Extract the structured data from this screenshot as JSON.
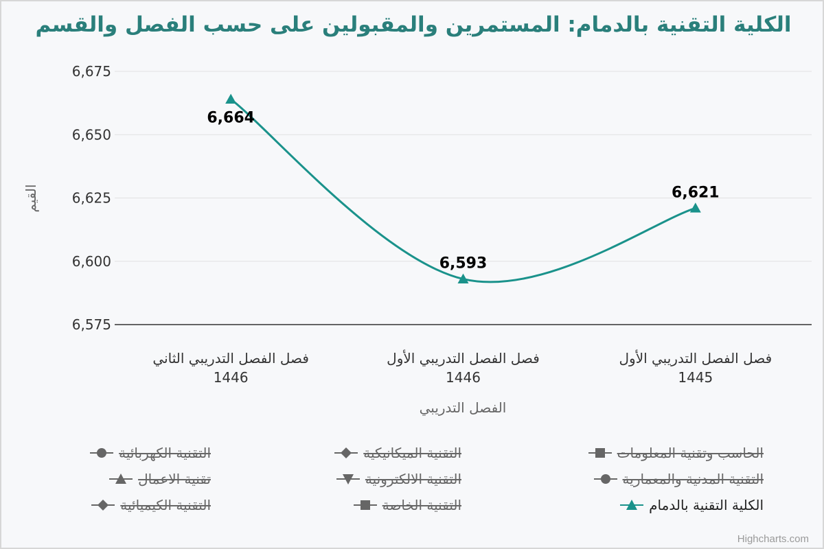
{
  "chart_data": {
    "type": "line",
    "title": "الكلية التقنية بالدمام: المستمرين والمقبولين على حسب الفصل والقسم",
    "xlabel": "الفصل التدريبي",
    "ylabel": "القيم",
    "categories": [
      [
        "فصل الفصل التدريبي الثاني",
        "1446"
      ],
      [
        "فصل الفصل التدريبي الأول",
        "1446"
      ],
      [
        "فصل الفصل التدريبي الأول",
        "1445"
      ]
    ],
    "series": [
      {
        "name": "الكلية التقنية بالدمام",
        "values": [
          6664,
          6593,
          6621
        ],
        "color": "#1a928b",
        "marker": "triangle"
      }
    ],
    "data_labels": [
      "6,664",
      "6,593",
      "6,621"
    ],
    "ylim": [
      6575,
      6675
    ],
    "yticks": [
      6575,
      6600,
      6625,
      6650,
      6675
    ],
    "ytick_labels": [
      "6,575",
      "6,600",
      "6,625",
      "6,650",
      "6,675"
    ],
    "grid": true,
    "legend": [
      {
        "name": "الحاسب وتقنية المعلومات",
        "marker": "square",
        "hidden": true
      },
      {
        "name": "التقنية الميكانيكية",
        "marker": "diamond",
        "hidden": true
      },
      {
        "name": "التقنية الكهربائية",
        "marker": "circle",
        "hidden": true
      },
      {
        "name": "التقنية المدنية والمعمارية",
        "marker": "circle",
        "hidden": true
      },
      {
        "name": "التقنية الالكترونية",
        "marker": "triangle-down",
        "hidden": true
      },
      {
        "name": "تقنية الاعمال",
        "marker": "triangle",
        "hidden": true
      },
      {
        "name": "الكلية التقنية بالدمام",
        "marker": "triangle",
        "hidden": false
      },
      {
        "name": "التقنية الخاصة",
        "marker": "square",
        "hidden": true
      },
      {
        "name": "التقنية الكيميائية",
        "marker": "diamond",
        "hidden": true
      }
    ],
    "legend_position": "bottom"
  },
  "credits": "Highcharts.com"
}
